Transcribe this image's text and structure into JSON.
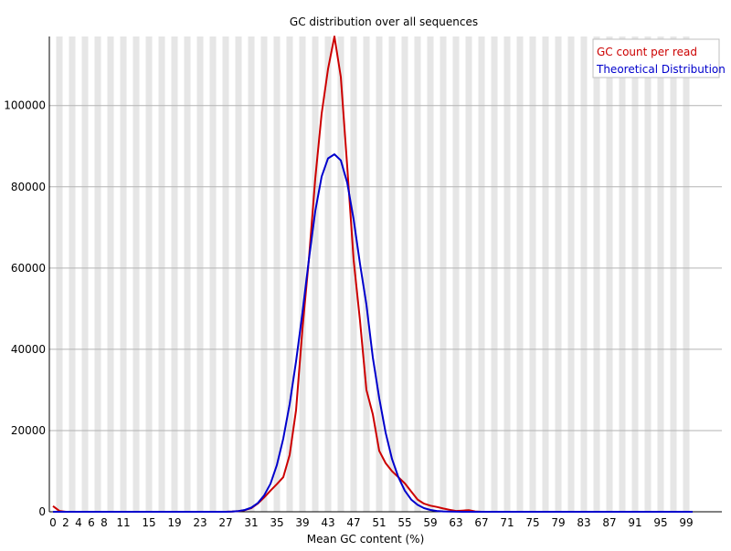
{
  "chart_data": {
    "type": "line",
    "title": "GC distribution over all sequences",
    "xlabel": "Mean GC content (%)",
    "ylabel": "",
    "xlim": [
      0,
      100
    ],
    "ylim": [
      0,
      117000
    ],
    "x_tick_labels": [
      "0",
      "2",
      "4",
      "6",
      "8",
      "11",
      "15",
      "19",
      "23",
      "27",
      "31",
      "35",
      "39",
      "43",
      "47",
      "51",
      "55",
      "59",
      "63",
      "67",
      "71",
      "75",
      "79",
      "83",
      "87",
      "91",
      "95",
      "99"
    ],
    "y_tick_labels": [
      "0",
      "20000",
      "40000",
      "60000",
      "80000",
      "100000"
    ],
    "y_ticks": [
      0,
      20000,
      40000,
      60000,
      80000,
      100000
    ],
    "grid": "horizontal lines with alternating vertical bands",
    "legend_position": "top-right",
    "x": [
      0,
      1,
      2,
      3,
      4,
      5,
      6,
      7,
      8,
      9,
      10,
      11,
      12,
      13,
      14,
      15,
      16,
      17,
      18,
      19,
      20,
      21,
      22,
      23,
      24,
      25,
      26,
      27,
      28,
      29,
      30,
      31,
      32,
      33,
      34,
      35,
      36,
      37,
      38,
      39,
      40,
      41,
      42,
      43,
      44,
      45,
      46,
      47,
      48,
      49,
      50,
      51,
      52,
      53,
      54,
      55,
      56,
      57,
      58,
      59,
      60,
      61,
      62,
      63,
      64,
      65,
      66,
      67,
      68,
      69,
      70,
      71,
      72,
      73,
      74,
      75,
      76,
      77,
      78,
      79,
      80,
      81,
      82,
      83,
      84,
      85,
      86,
      87,
      88,
      89,
      90,
      91,
      92,
      93,
      94,
      95,
      96,
      97,
      98,
      99,
      100
    ],
    "series": [
      {
        "name": "GC count per read",
        "color": "#cc0000",
        "values": [
          1400,
          200,
          0,
          0,
          0,
          0,
          0,
          0,
          0,
          0,
          0,
          0,
          0,
          0,
          0,
          0,
          0,
          0,
          0,
          0,
          0,
          0,
          0,
          0,
          0,
          0,
          0,
          0,
          50,
          150,
          400,
          900,
          2000,
          3500,
          5200,
          6800,
          8500,
          14000,
          25000,
          45000,
          62000,
          82000,
          98000,
          109000,
          117000,
          107000,
          85000,
          62000,
          47000,
          30000,
          24000,
          15000,
          12000,
          10000,
          8500,
          7000,
          5000,
          3000,
          2000,
          1500,
          1200,
          800,
          500,
          200,
          300,
          400,
          100,
          0,
          0,
          0,
          0,
          0,
          0,
          0,
          0,
          0,
          0,
          0,
          0,
          0,
          0,
          0,
          0,
          0,
          0,
          0,
          0,
          0,
          0,
          0,
          0,
          0,
          0,
          0,
          0,
          0,
          0,
          0,
          0,
          0,
          0
        ]
      },
      {
        "name": "Theoretical Distribution",
        "color": "#0000cc",
        "values": [
          0,
          0,
          0,
          0,
          0,
          0,
          0,
          0,
          0,
          0,
          0,
          0,
          0,
          0,
          0,
          0,
          0,
          0,
          0,
          0,
          0,
          0,
          0,
          0,
          0,
          0,
          0,
          0,
          60,
          180,
          450,
          1000,
          2100,
          4000,
          6900,
          11500,
          18000,
          26500,
          37000,
          49000,
          62000,
          74000,
          82500,
          87000,
          88000,
          86500,
          81000,
          72000,
          61000,
          51000,
          38000,
          28000,
          19500,
          13000,
          8500,
          5200,
          3000,
          1700,
          900,
          450,
          200,
          90,
          35,
          12,
          4,
          1,
          0,
          0,
          0,
          0,
          0,
          0,
          0,
          0,
          0,
          0,
          0,
          0,
          0,
          0,
          0,
          0,
          0,
          0,
          0,
          0,
          0,
          0,
          0,
          0,
          0,
          0,
          0,
          0,
          0,
          0,
          0,
          0,
          0,
          0,
          0
        ]
      }
    ]
  }
}
